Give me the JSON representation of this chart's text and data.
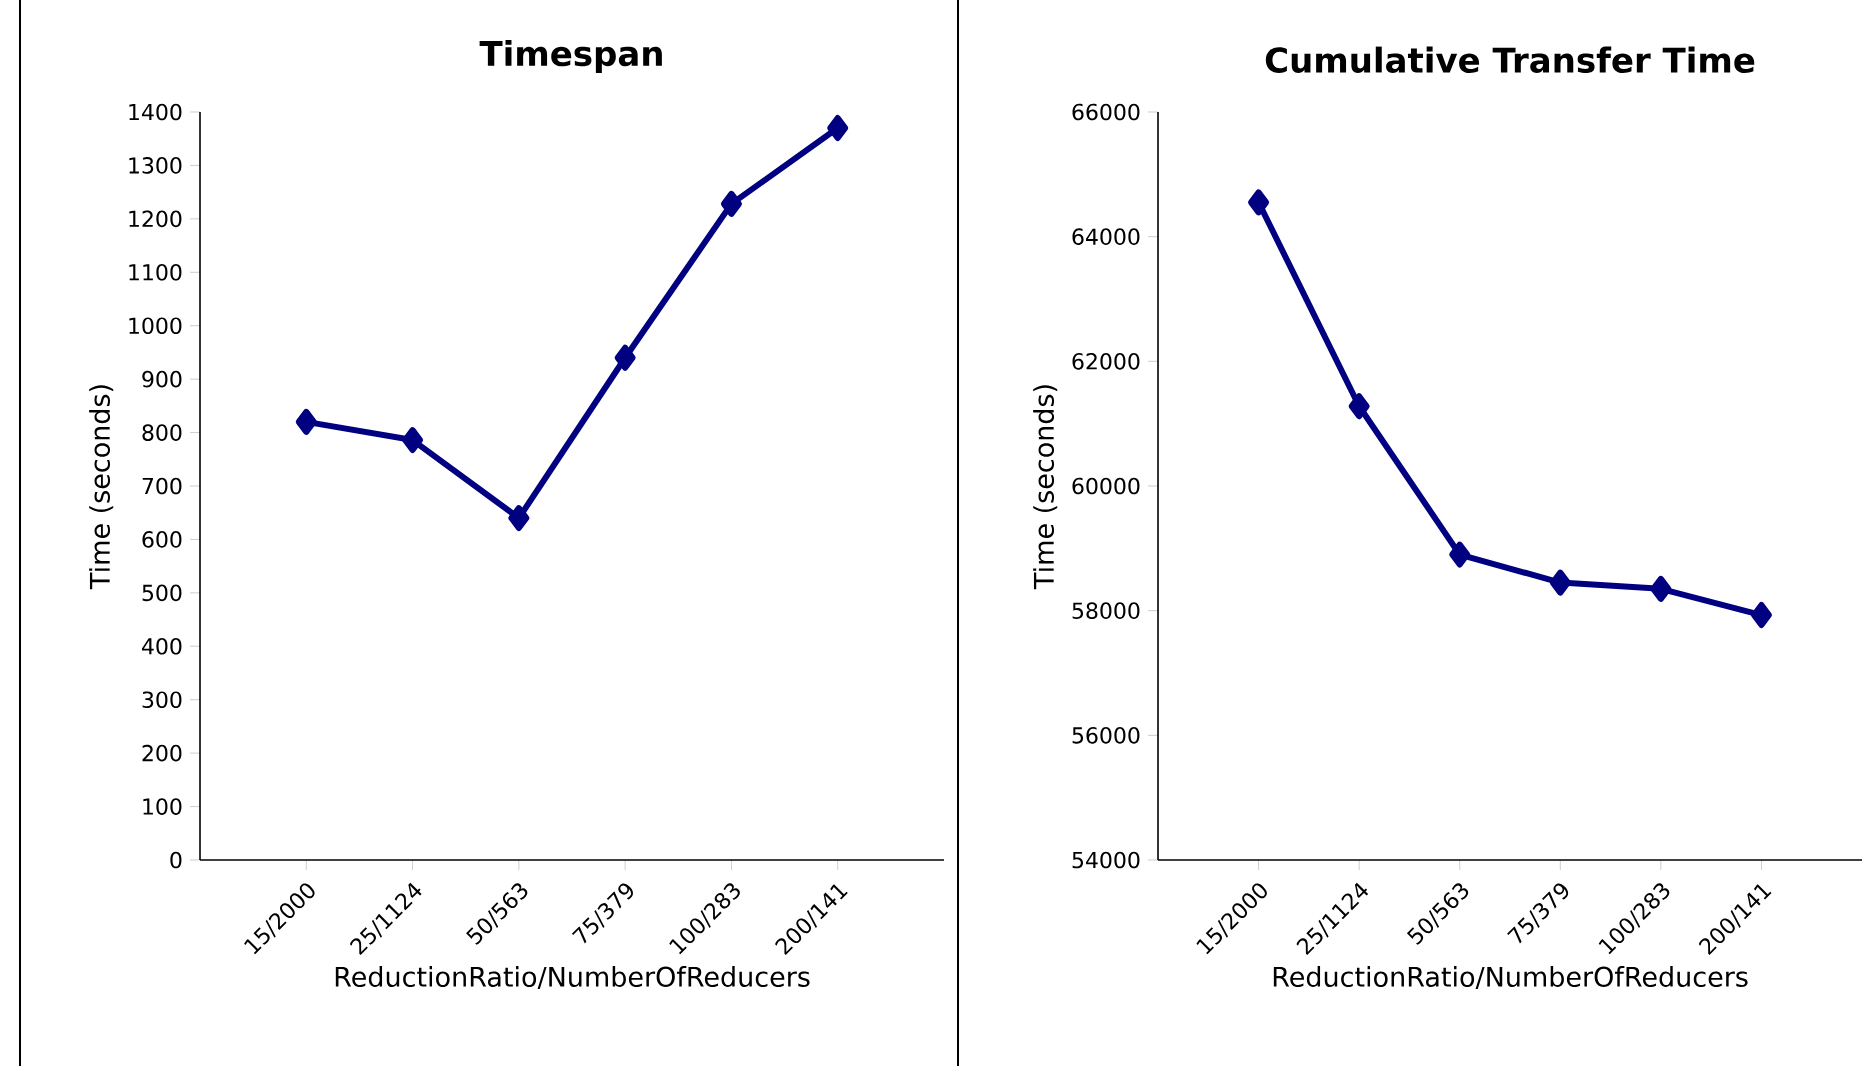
{
  "chart_data": [
    {
      "type": "line",
      "title": "Timespan",
      "xlabel": "ReductionRatio/NumberOfReducers",
      "ylabel": "Time (seconds)",
      "categories": [
        "15/2000",
        "25/1124",
        "50/563",
        "75/379",
        "100/283",
        "200/141"
      ],
      "series": [
        {
          "color": "#000080",
          "values": [
            820,
            786,
            640,
            940,
            1228,
            1370
          ]
        }
      ],
      "ylim": [
        0,
        1400
      ],
      "yticks": [
        0,
        100,
        200,
        300,
        400,
        500,
        600,
        700,
        800,
        900,
        1000,
        1100,
        1200,
        1300,
        1400
      ],
      "marker": "diamond"
    },
    {
      "type": "line",
      "title": "Cumulative Transfer Time",
      "xlabel": "ReductionRatio/NumberOfReducers",
      "ylabel": "Time (seconds)",
      "categories": [
        "15/2000",
        "25/1124",
        "50/563",
        "75/379",
        "100/283",
        "200/141"
      ],
      "series": [
        {
          "color": "#000080",
          "values": [
            64550,
            61280,
            58900,
            58450,
            58350,
            57930
          ]
        }
      ],
      "ylim": [
        54000,
        66000
      ],
      "yticks": [
        54000,
        56000,
        58000,
        60000,
        62000,
        64000,
        66000
      ],
      "marker": "diamond"
    }
  ]
}
